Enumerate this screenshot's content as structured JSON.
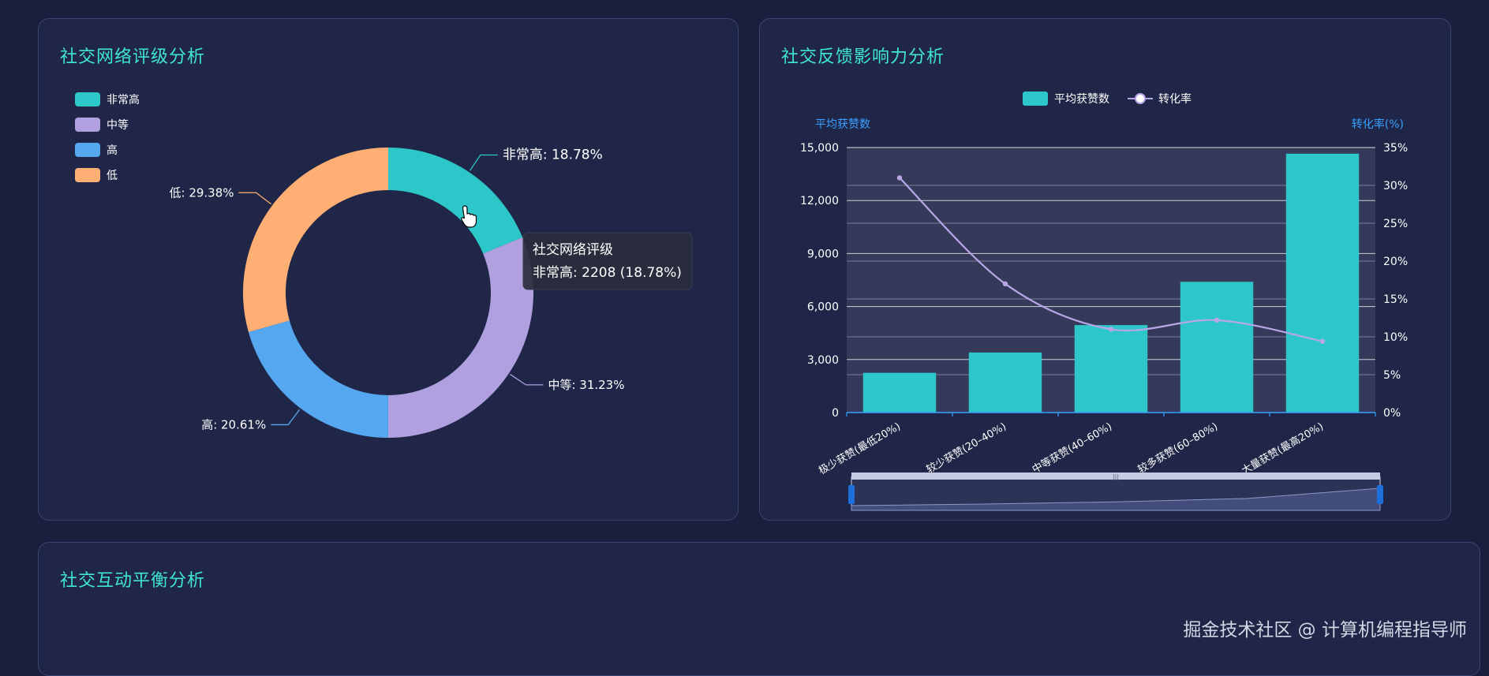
{
  "panels": {
    "rating": {
      "title": "社交网络评级分析"
    },
    "feedback": {
      "title": "社交反馈影响力分析"
    },
    "balance": {
      "title": "社交互动平衡分析"
    }
  },
  "footer": {
    "watermark_text": "掘金技术社区 @ 计算机编程指导师"
  },
  "chart_data": [
    {
      "type": "pie",
      "donut": true,
      "legend_position": "top-left",
      "legend": [
        "非常高",
        "中等",
        "高",
        "低"
      ],
      "slices": [
        {
          "name": "非常高",
          "percent": 18.78,
          "label": "非常高: 18.78%",
          "color": "#2ec7c9"
        },
        {
          "name": "中等",
          "percent": 31.23,
          "label": "中等: 31.23%",
          "color": "#b0a0e0"
        },
        {
          "name": "高",
          "percent": 20.61,
          "label": "高: 20.61%",
          "color": "#55a7f0"
        },
        {
          "name": "低",
          "percent": 29.38,
          "label": "低: 29.38%",
          "color": "#ffae74"
        }
      ],
      "tooltip": {
        "title": "社交网络评级",
        "text": "非常高: 2208 (18.78%)"
      }
    },
    {
      "type": "bar",
      "legend_position": "top-center",
      "legend": [
        "平均获赞数",
        "转化率"
      ],
      "left_axis": {
        "label": "平均获赞数",
        "min": 0,
        "max": 15000,
        "ticks": [
          "0",
          "3,000",
          "6,000",
          "9,000",
          "12,000",
          "15,000"
        ]
      },
      "right_axis": {
        "label": "转化率(%)",
        "min": 0,
        "max": 35,
        "ticks": [
          "0%",
          "5%",
          "10%",
          "15%",
          "20%",
          "25%",
          "30%",
          "35%"
        ]
      },
      "categories": [
        "极少获赞(最低20%)",
        "较少获赞(20–40%)",
        "中等获赞(40–60%)",
        "较多获赞(60–80%)",
        "大量获赞(最高20%)"
      ],
      "series": [
        {
          "name": "平均获赞数",
          "type": "bar",
          "axis": "left",
          "color": "#2ec7c9",
          "values": [
            2250,
            3400,
            4950,
            7400,
            14650
          ]
        },
        {
          "name": "转化率",
          "type": "line",
          "axis": "right",
          "color": "#b8a6e6",
          "values": [
            31,
            17,
            11,
            12.2,
            9.4
          ]
        }
      ],
      "data_zoom": {
        "start": 0,
        "end": 100
      }
    }
  ]
}
